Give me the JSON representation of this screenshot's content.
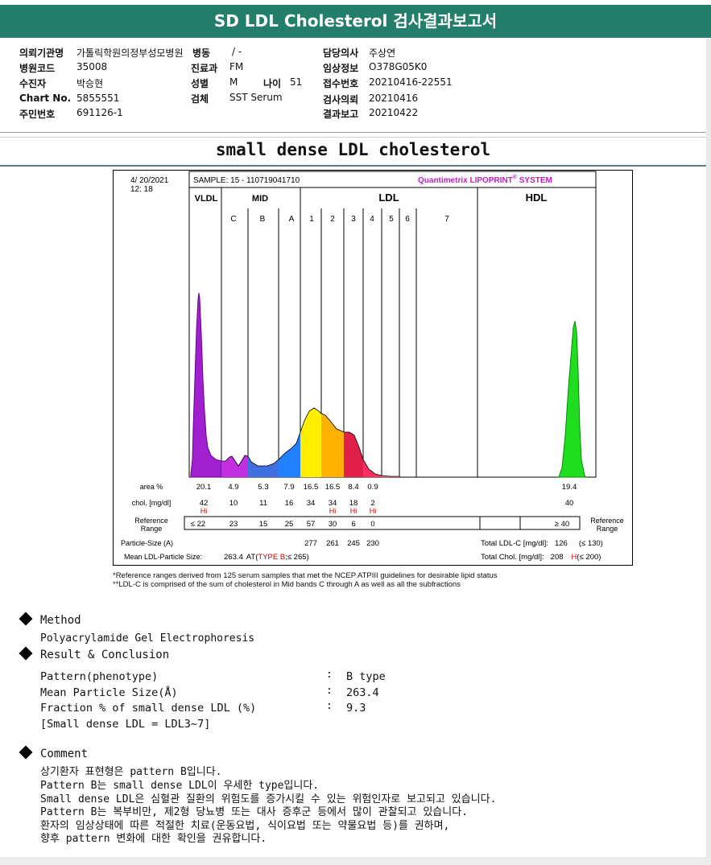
{
  "title": "SD LDL Cholesterol 검사결과보고서",
  "info": {
    "rows": [
      [
        {
          "label": "의뢰기관명",
          "value": "가톨릭학원의정부성모병원"
        },
        {
          "label": "병동",
          "value": "/ -"
        },
        {
          "label": "",
          "value": ""
        },
        {
          "label": "담당의사",
          "value": "주상연"
        }
      ],
      [
        {
          "label": "병원코드",
          "value": "35008"
        },
        {
          "label": "진료과",
          "value": "FM"
        },
        {
          "label": "",
          "value": ""
        },
        {
          "label": "임상정보",
          "value": "O378G05K0"
        }
      ],
      [
        {
          "label": "수진자",
          "value": "박승현"
        },
        {
          "label": "성별",
          "value": "M"
        },
        {
          "label": "나이",
          "value": "51"
        },
        {
          "label": "접수번호",
          "value": "20210416-22551"
        }
      ],
      [
        {
          "label": "Chart No.",
          "value": "5855551"
        },
        {
          "label": "검체",
          "value": "SST Serum"
        },
        {
          "label": "",
          "value": ""
        },
        {
          "label": "검사의뢰",
          "value": "20210416"
        }
      ],
      [
        {
          "label": "주민번호",
          "value": "691126-1"
        },
        {
          "label": "",
          "value": ""
        },
        {
          "label": "",
          "value": ""
        },
        {
          "label": "결과보고",
          "value": "20210422"
        }
      ]
    ]
  },
  "subtitle": "small dense LDL cholesterol",
  "chart_data": {
    "type": "area",
    "date": "4/ 20/2021",
    "time": "12: 18",
    "sample": "SAMPLE:    15 - 110719041710",
    "system": "Quantimetrix LIPOPRINT",
    "system_mark": "®",
    "system_suffix": " SYSTEM",
    "groups": [
      "VLDL",
      "MID",
      "LDL",
      "HDL"
    ],
    "bands": [
      "C",
      "B",
      "A",
      "1",
      "2",
      "3",
      "4",
      "5",
      "6",
      "7"
    ],
    "band_colors": [
      "#a020d0",
      "#c030e0",
      "#4060e0",
      "#2080ff",
      "#ffee00",
      "#ffb000",
      "#e0204a",
      "#ff4040",
      "#ff6060",
      "#ff8080",
      "#20dd20"
    ],
    "row_labels": {
      "area": "area %",
      "chol": "chol. [mg/dl]",
      "ref": "Reference Range",
      "particle": "Particle-Size (A)",
      "mean": "Mean LDL-Particle Size:"
    },
    "area": [
      "20.1",
      "4.9",
      "5.3",
      "7.9",
      "16.5",
      "16.5",
      "8.4",
      "0.9",
      "",
      "",
      "",
      "19.4"
    ],
    "chol": [
      "42",
      "10",
      "11",
      "16",
      "34",
      "34",
      "18",
      "2",
      "",
      "",
      "",
      "40"
    ],
    "chol_flags": [
      "Hi",
      "",
      "",
      "",
      "",
      "Hi",
      "Hi",
      "Hi",
      "",
      "",
      "",
      ""
    ],
    "ref": [
      "≤ 22",
      "23",
      "15",
      "25",
      "57",
      "30",
      "6",
      "0"
    ],
    "ref_hdl": "≥  40",
    "particle_sizes": [
      "277",
      "261",
      "245",
      "230"
    ],
    "mean_size": "263.4",
    "mean_type_prefix": "AT(",
    "mean_type": "TYPE B",
    "mean_type_suffix": ";≤ 265)",
    "total_ldl_label": "Total LDL-C [mg/dl]:",
    "total_ldl": "126",
    "total_ldl_ref": "(≤ 130)",
    "total_chol_label": "Total Chol. [mg/dl]:",
    "total_chol": "208",
    "total_chol_flag": "H",
    "total_chol_ref": "(≤ 200)",
    "right_ref_label": "Reference Range",
    "note1": "*Reference ranges derived from 125 serum samples that met the NCEP ATPIII guidelines for desirable lipid status",
    "note2": "**LDL-C is comprised of the sum of cholesterol in Mid bands C through A as well as all the subfractions"
  },
  "method": {
    "heading": "Method",
    "text": "Polyacrylamide Gel Electrophoresis"
  },
  "result": {
    "heading": "Result & Conclusion",
    "rows": [
      {
        "label": "Pattern(phenotype)",
        "sep": ":",
        "value": "B type"
      },
      {
        "label": "Mean Particle Size(Å)",
        "sep": ":",
        "value": "263.4"
      },
      {
        "label": "Fraction % of small dense LDL (%)",
        "sep": ":",
        "value": "9.3"
      }
    ],
    "note": "[Small dense LDL = LDL3~7]"
  },
  "comment": {
    "heading": "Comment",
    "lines": [
      "상기환자 표현형은 pattern B입니다.",
      "Pattern B는 small dense LDL이 우세한 type입니다.",
      "Small dense LDL은 심혈관 질환의 위험도를 증가시킬 수 있는 위험인자로 보고되고 있습니다.",
      "Pattern B는 복부비만, 제2형 당뇨병 또는 대사 증후군 등에서 많이 관찰되고 있습니다.",
      "환자의 임상상태에 따른 적절한 치료(운동요법, 식이요법 또는 약물요법 등)를 권하며,",
      "향후 pattern 변화에 대한 확인을 권유합니다."
    ]
  }
}
